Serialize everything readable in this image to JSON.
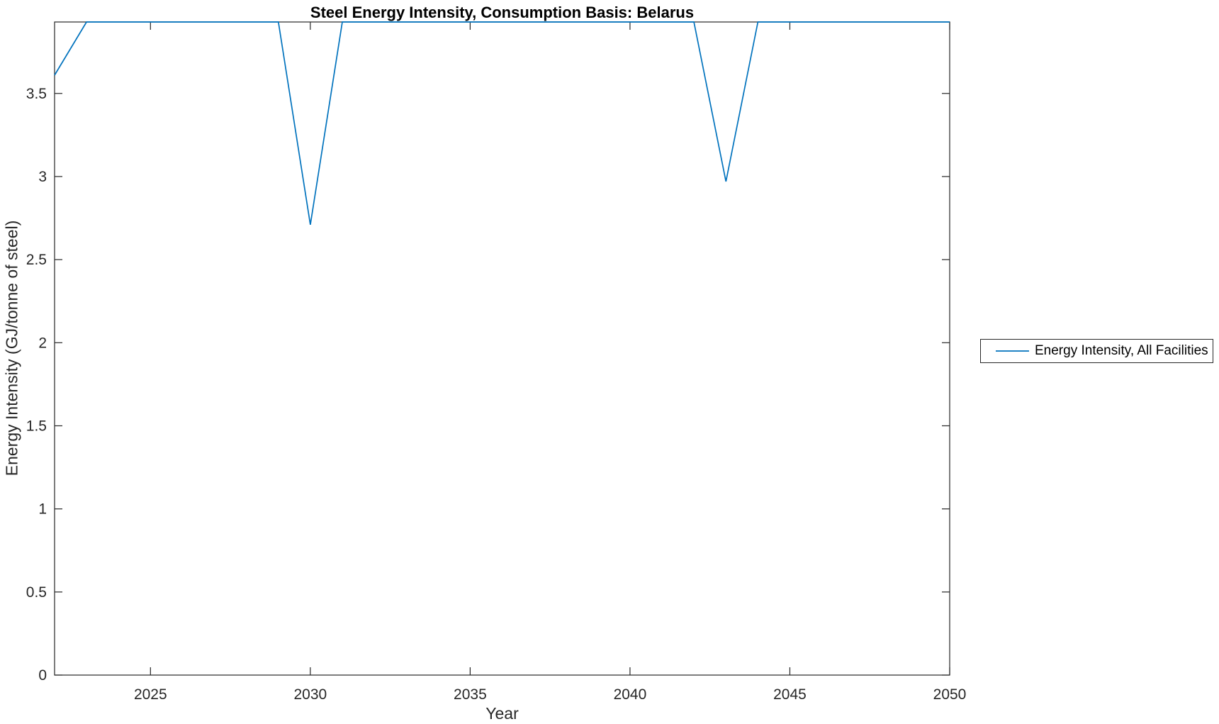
{
  "figure": {
    "background": "#ffffff",
    "axis_color": "#262626",
    "title_color": "#000000"
  },
  "chart_data": {
    "type": "line",
    "title": "Steel Energy Intensity, Consumption Basis: Belarus",
    "xlabel": "Year",
    "ylabel": "Energy Intensity (GJ/tonne of steel)",
    "xlim": [
      2022,
      2050
    ],
    "ylim": [
      0,
      3.93
    ],
    "xticks": [
      2025,
      2030,
      2035,
      2040,
      2045,
      2050
    ],
    "yticks": [
      0,
      0.5,
      1,
      1.5,
      2,
      2.5,
      3,
      3.5
    ],
    "grid": false,
    "legend": {
      "position": "right-outside",
      "border_color": "#262626",
      "entries": [
        "Energy Intensity, All Facilities"
      ]
    },
    "x": [
      2022,
      2023,
      2024,
      2025,
      2026,
      2027,
      2028,
      2029,
      2030,
      2031,
      2032,
      2033,
      2034,
      2035,
      2036,
      2037,
      2038,
      2039,
      2040,
      2041,
      2042,
      2043,
      2044,
      2045,
      2046,
      2047,
      2048,
      2049,
      2050
    ],
    "series": [
      {
        "name": "Energy Intensity, All Facilities",
        "color": "#0072BD",
        "values": [
          3.61,
          3.93,
          3.93,
          3.93,
          3.93,
          3.93,
          3.93,
          3.93,
          2.71,
          3.93,
          3.93,
          3.93,
          3.93,
          3.93,
          3.93,
          3.93,
          3.93,
          3.93,
          3.93,
          3.93,
          3.93,
          2.97,
          3.93,
          3.93,
          3.93,
          3.93,
          3.93,
          3.93,
          3.93
        ]
      }
    ]
  }
}
